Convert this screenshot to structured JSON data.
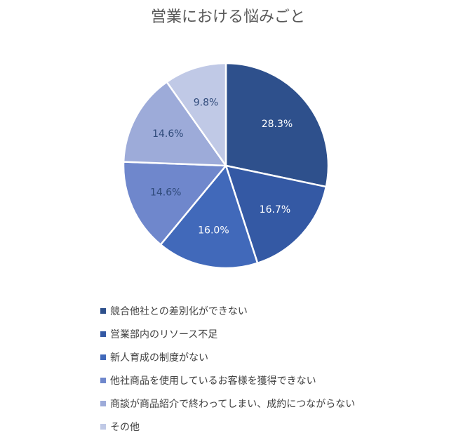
{
  "chart_data": {
    "type": "pie",
    "title": "営業における悩みごと",
    "slices": [
      {
        "label": "競合他社との差別化ができない",
        "value": 28.3,
        "display": "28.3%",
        "color": "#2E508C"
      },
      {
        "label": "営業部内のリソース不足",
        "value": 16.7,
        "display": "16.7%",
        "color": "#3459A4"
      },
      {
        "label": "新人育成の制度がない",
        "value": 16.0,
        "display": "16.0%",
        "color": "#4169BA"
      },
      {
        "label": "他社商品を使用しているお客様を獲得できない",
        "value": 14.6,
        "display": "14.6%",
        "color": "#6F87CC"
      },
      {
        "label": "商談が商品紹介で終わってしまい、成約につながらない",
        "value": 14.6,
        "display": "14.6%",
        "color": "#9DABD9"
      },
      {
        "label": "その他",
        "value": 9.8,
        "display": "9.8%",
        "color": "#C0C9E6"
      }
    ],
    "label_colors": {
      "dark_slice": "#ffffff",
      "light_slice": "#2F4A7A"
    },
    "legend_position": "bottom-left"
  }
}
